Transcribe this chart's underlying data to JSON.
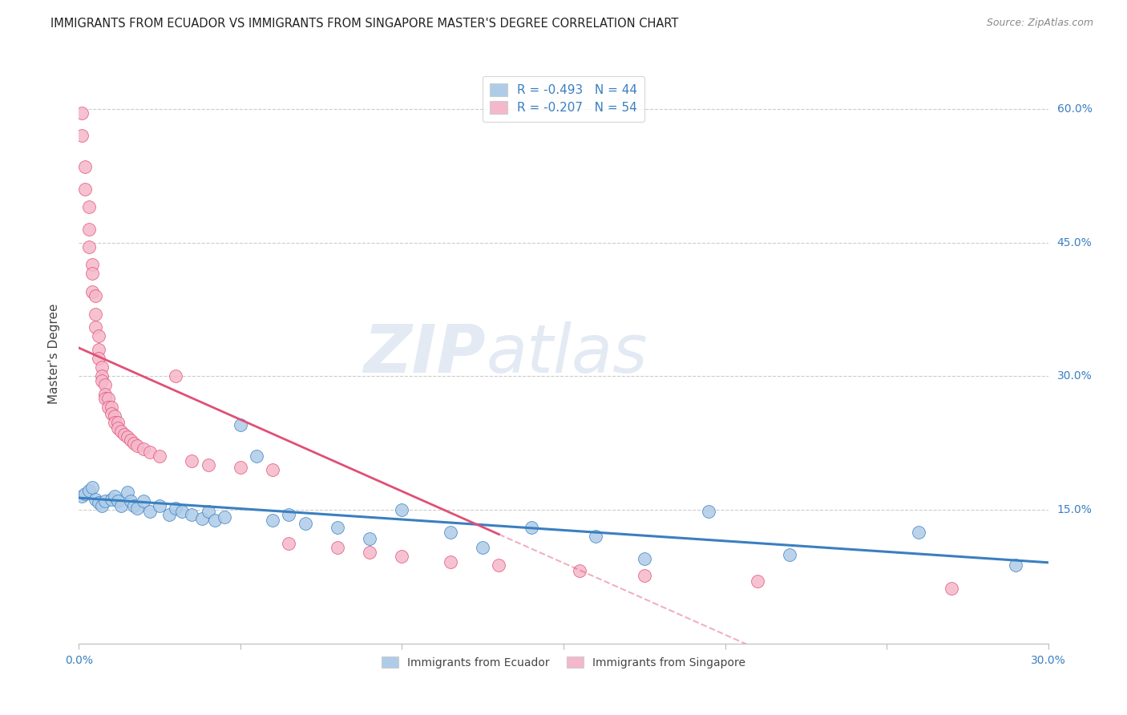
{
  "title": "IMMIGRANTS FROM ECUADOR VS IMMIGRANTS FROM SINGAPORE MASTER'S DEGREE CORRELATION CHART",
  "source": "Source: ZipAtlas.com",
  "ylabel": "Master's Degree",
  "y_tick_labels": [
    "15.0%",
    "30.0%",
    "45.0%",
    "60.0%"
  ],
  "y_tick_values": [
    0.15,
    0.3,
    0.45,
    0.6
  ],
  "xlim": [
    0.0,
    0.3
  ],
  "ylim": [
    0.0,
    0.65
  ],
  "legend1_label": "R = -0.493   N = 44",
  "legend2_label": "R = -0.207   N = 54",
  "series1_color": "#aecce8",
  "series2_color": "#f5b8cb",
  "line1_color": "#3a7fc1",
  "line2_color": "#e05075",
  "ecuador_x": [
    0.001,
    0.002,
    0.003,
    0.004,
    0.005,
    0.006,
    0.007,
    0.008,
    0.01,
    0.011,
    0.012,
    0.013,
    0.015,
    0.016,
    0.017,
    0.018,
    0.02,
    0.022,
    0.025,
    0.028,
    0.03,
    0.032,
    0.035,
    0.038,
    0.04,
    0.042,
    0.045,
    0.05,
    0.055,
    0.06,
    0.065,
    0.07,
    0.08,
    0.09,
    0.1,
    0.115,
    0.125,
    0.14,
    0.16,
    0.175,
    0.195,
    0.22,
    0.26,
    0.29
  ],
  "ecuador_y": [
    0.165,
    0.168,
    0.172,
    0.175,
    0.162,
    0.158,
    0.155,
    0.16,
    0.162,
    0.165,
    0.16,
    0.155,
    0.17,
    0.16,
    0.155,
    0.152,
    0.16,
    0.148,
    0.155,
    0.145,
    0.152,
    0.148,
    0.145,
    0.14,
    0.148,
    0.138,
    0.142,
    0.245,
    0.21,
    0.138,
    0.145,
    0.135,
    0.13,
    0.118,
    0.15,
    0.125,
    0.108,
    0.13,
    0.12,
    0.095,
    0.148,
    0.1,
    0.125,
    0.088
  ],
  "singapore_x": [
    0.001,
    0.001,
    0.002,
    0.002,
    0.003,
    0.003,
    0.003,
    0.004,
    0.004,
    0.004,
    0.005,
    0.005,
    0.005,
    0.006,
    0.006,
    0.006,
    0.007,
    0.007,
    0.007,
    0.008,
    0.008,
    0.008,
    0.009,
    0.009,
    0.01,
    0.01,
    0.011,
    0.011,
    0.012,
    0.012,
    0.013,
    0.014,
    0.015,
    0.016,
    0.017,
    0.018,
    0.02,
    0.022,
    0.025,
    0.03,
    0.035,
    0.04,
    0.05,
    0.06,
    0.065,
    0.08,
    0.09,
    0.1,
    0.115,
    0.13,
    0.155,
    0.175,
    0.21,
    0.27
  ],
  "singapore_y": [
    0.57,
    0.595,
    0.535,
    0.51,
    0.49,
    0.465,
    0.445,
    0.425,
    0.415,
    0.395,
    0.39,
    0.37,
    0.355,
    0.345,
    0.33,
    0.32,
    0.31,
    0.3,
    0.295,
    0.29,
    0.28,
    0.275,
    0.275,
    0.265,
    0.265,
    0.258,
    0.255,
    0.248,
    0.248,
    0.242,
    0.238,
    0.235,
    0.232,
    0.228,
    0.225,
    0.222,
    0.218,
    0.215,
    0.21,
    0.3,
    0.205,
    0.2,
    0.198,
    0.195,
    0.112,
    0.108,
    0.102,
    0.098,
    0.092,
    0.088,
    0.082,
    0.076,
    0.07,
    0.062
  ]
}
